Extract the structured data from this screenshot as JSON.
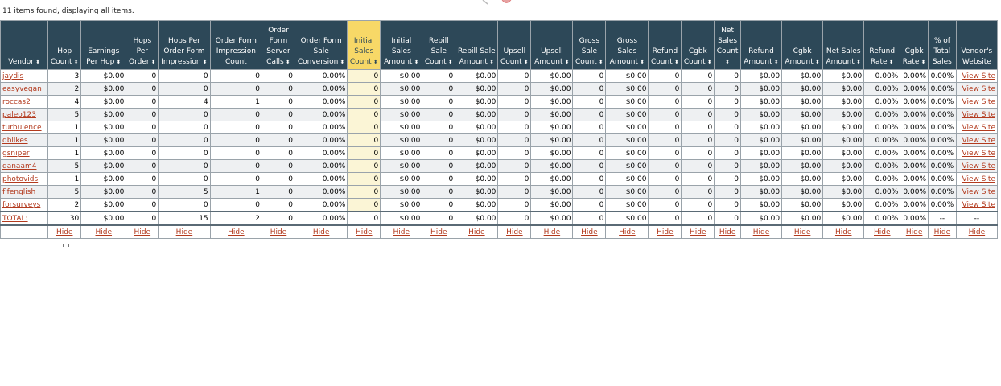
{
  "status_text": "11 items found, displaying all items.",
  "columns": [
    {
      "label": "Vendor",
      "sortable": true
    },
    {
      "label": "Hop Count",
      "sortable": true
    },
    {
      "label": "Earnings Per Hop",
      "sortable": true
    },
    {
      "label": "Hops Per Order",
      "sortable": true
    },
    {
      "label": "Hops Per Order Form Impression",
      "sortable": true
    },
    {
      "label": "Order Form Impression Count",
      "sortable": false
    },
    {
      "label": "Order Form Server Calls",
      "sortable": true
    },
    {
      "label": "Order Form Sale Conversion",
      "sortable": true
    },
    {
      "label": "Initial Sales Count",
      "sortable": true
    },
    {
      "label": "Initial Sales Amount",
      "sortable": true
    },
    {
      "label": "Rebill Sale Count",
      "sortable": true
    },
    {
      "label": "Rebill Sale Amount",
      "sortable": true
    },
    {
      "label": "Upsell Count",
      "sortable": true
    },
    {
      "label": "Upsell Amount",
      "sortable": true
    },
    {
      "label": "Gross Sale Count",
      "sortable": true
    },
    {
      "label": "Gross Sales Amount",
      "sortable": true
    },
    {
      "label": "Refund Count",
      "sortable": true
    },
    {
      "label": "Cgbk Count",
      "sortable": true
    },
    {
      "label": "Net Sales Count",
      "sortable": true
    },
    {
      "label": "Refund Amount",
      "sortable": true
    },
    {
      "label": "Cgbk Amount",
      "sortable": true
    },
    {
      "label": "Net Sales Amount",
      "sortable": true
    },
    {
      "label": "Refund Rate",
      "sortable": true
    },
    {
      "label": "Cgbk Rate",
      "sortable": true
    },
    {
      "label": "% of Total Sales",
      "sortable": false
    },
    {
      "label": "Vendor's Website",
      "sortable": false
    }
  ],
  "highlighted_column": 8,
  "rows": [
    [
      "jaydis",
      "3",
      "$0.00",
      "0",
      "0",
      "0",
      "0",
      "0.00%",
      "0",
      "$0.00",
      "0",
      "$0.00",
      "0",
      "$0.00",
      "0",
      "$0.00",
      "0",
      "0",
      "0",
      "$0.00",
      "$0.00",
      "$0.00",
      "0.00%",
      "0.00%",
      "0.00%",
      "View Site"
    ],
    [
      "easyvegan",
      "2",
      "$0.00",
      "0",
      "0",
      "0",
      "0",
      "0.00%",
      "0",
      "$0.00",
      "0",
      "$0.00",
      "0",
      "$0.00",
      "0",
      "$0.00",
      "0",
      "0",
      "0",
      "$0.00",
      "$0.00",
      "$0.00",
      "0.00%",
      "0.00%",
      "0.00%",
      "View Site"
    ],
    [
      "roccas2",
      "4",
      "$0.00",
      "0",
      "4",
      "1",
      "0",
      "0.00%",
      "0",
      "$0.00",
      "0",
      "$0.00",
      "0",
      "$0.00",
      "0",
      "$0.00",
      "0",
      "0",
      "0",
      "$0.00",
      "$0.00",
      "$0.00",
      "0.00%",
      "0.00%",
      "0.00%",
      "View Site"
    ],
    [
      "paleo123",
      "5",
      "$0.00",
      "0",
      "0",
      "0",
      "0",
      "0.00%",
      "0",
      "$0.00",
      "0",
      "$0.00",
      "0",
      "$0.00",
      "0",
      "$0.00",
      "0",
      "0",
      "0",
      "$0.00",
      "$0.00",
      "$0.00",
      "0.00%",
      "0.00%",
      "0.00%",
      "View Site"
    ],
    [
      "turbulence",
      "1",
      "$0.00",
      "0",
      "0",
      "0",
      "0",
      "0.00%",
      "0",
      "$0.00",
      "0",
      "$0.00",
      "0",
      "$0.00",
      "0",
      "$0.00",
      "0",
      "0",
      "0",
      "$0.00",
      "$0.00",
      "$0.00",
      "0.00%",
      "0.00%",
      "0.00%",
      "View Site"
    ],
    [
      "dblikes",
      "1",
      "$0.00",
      "0",
      "0",
      "0",
      "0",
      "0.00%",
      "0",
      "$0.00",
      "0",
      "$0.00",
      "0",
      "$0.00",
      "0",
      "$0.00",
      "0",
      "0",
      "0",
      "$0.00",
      "$0.00",
      "$0.00",
      "0.00%",
      "0.00%",
      "0.00%",
      "View Site"
    ],
    [
      "gsniper",
      "1",
      "$0.00",
      "0",
      "0",
      "0",
      "0",
      "0.00%",
      "0",
      "$0.00",
      "0",
      "$0.00",
      "0",
      "$0.00",
      "0",
      "$0.00",
      "0",
      "0",
      "0",
      "$0.00",
      "$0.00",
      "$0.00",
      "0.00%",
      "0.00%",
      "0.00%",
      "View Site"
    ],
    [
      "danaam4",
      "5",
      "$0.00",
      "0",
      "0",
      "0",
      "0",
      "0.00%",
      "0",
      "$0.00",
      "0",
      "$0.00",
      "0",
      "$0.00",
      "0",
      "$0.00",
      "0",
      "0",
      "0",
      "$0.00",
      "$0.00",
      "$0.00",
      "0.00%",
      "0.00%",
      "0.00%",
      "View Site"
    ],
    [
      "photovids",
      "1",
      "$0.00",
      "0",
      "0",
      "0",
      "0",
      "0.00%",
      "0",
      "$0.00",
      "0",
      "$0.00",
      "0",
      "$0.00",
      "0",
      "$0.00",
      "0",
      "0",
      "0",
      "$0.00",
      "$0.00",
      "$0.00",
      "0.00%",
      "0.00%",
      "0.00%",
      "View Site"
    ],
    [
      "flfenglish",
      "5",
      "$0.00",
      "0",
      "5",
      "1",
      "0",
      "0.00%",
      "0",
      "$0.00",
      "0",
      "$0.00",
      "0",
      "$0.00",
      "0",
      "$0.00",
      "0",
      "0",
      "0",
      "$0.00",
      "$0.00",
      "$0.00",
      "0.00%",
      "0.00%",
      "0.00%",
      "View Site"
    ],
    [
      "forsurveys",
      "2",
      "$0.00",
      "0",
      "0",
      "0",
      "0",
      "0.00%",
      "0",
      "$0.00",
      "0",
      "$0.00",
      "0",
      "$0.00",
      "0",
      "$0.00",
      "0",
      "0",
      "0",
      "$0.00",
      "$0.00",
      "$0.00",
      "0.00%",
      "0.00%",
      "0.00%",
      "View Site"
    ]
  ],
  "total_row": [
    "TOTAL:",
    "30",
    "$0.00",
    "0",
    "15",
    "2",
    "0",
    "0.00%",
    "0",
    "$0.00",
    "0",
    "$0.00",
    "0",
    "$0.00",
    "0",
    "$0.00",
    "0",
    "0",
    "0",
    "$0.00",
    "$0.00",
    "$0.00",
    "0.00%",
    "0.00%",
    "--",
    "--"
  ],
  "hide_label": "Hide",
  "colors": {
    "header_bg": "#2d4858",
    "highlight": "#f7d867",
    "link": "#b33a1e"
  }
}
